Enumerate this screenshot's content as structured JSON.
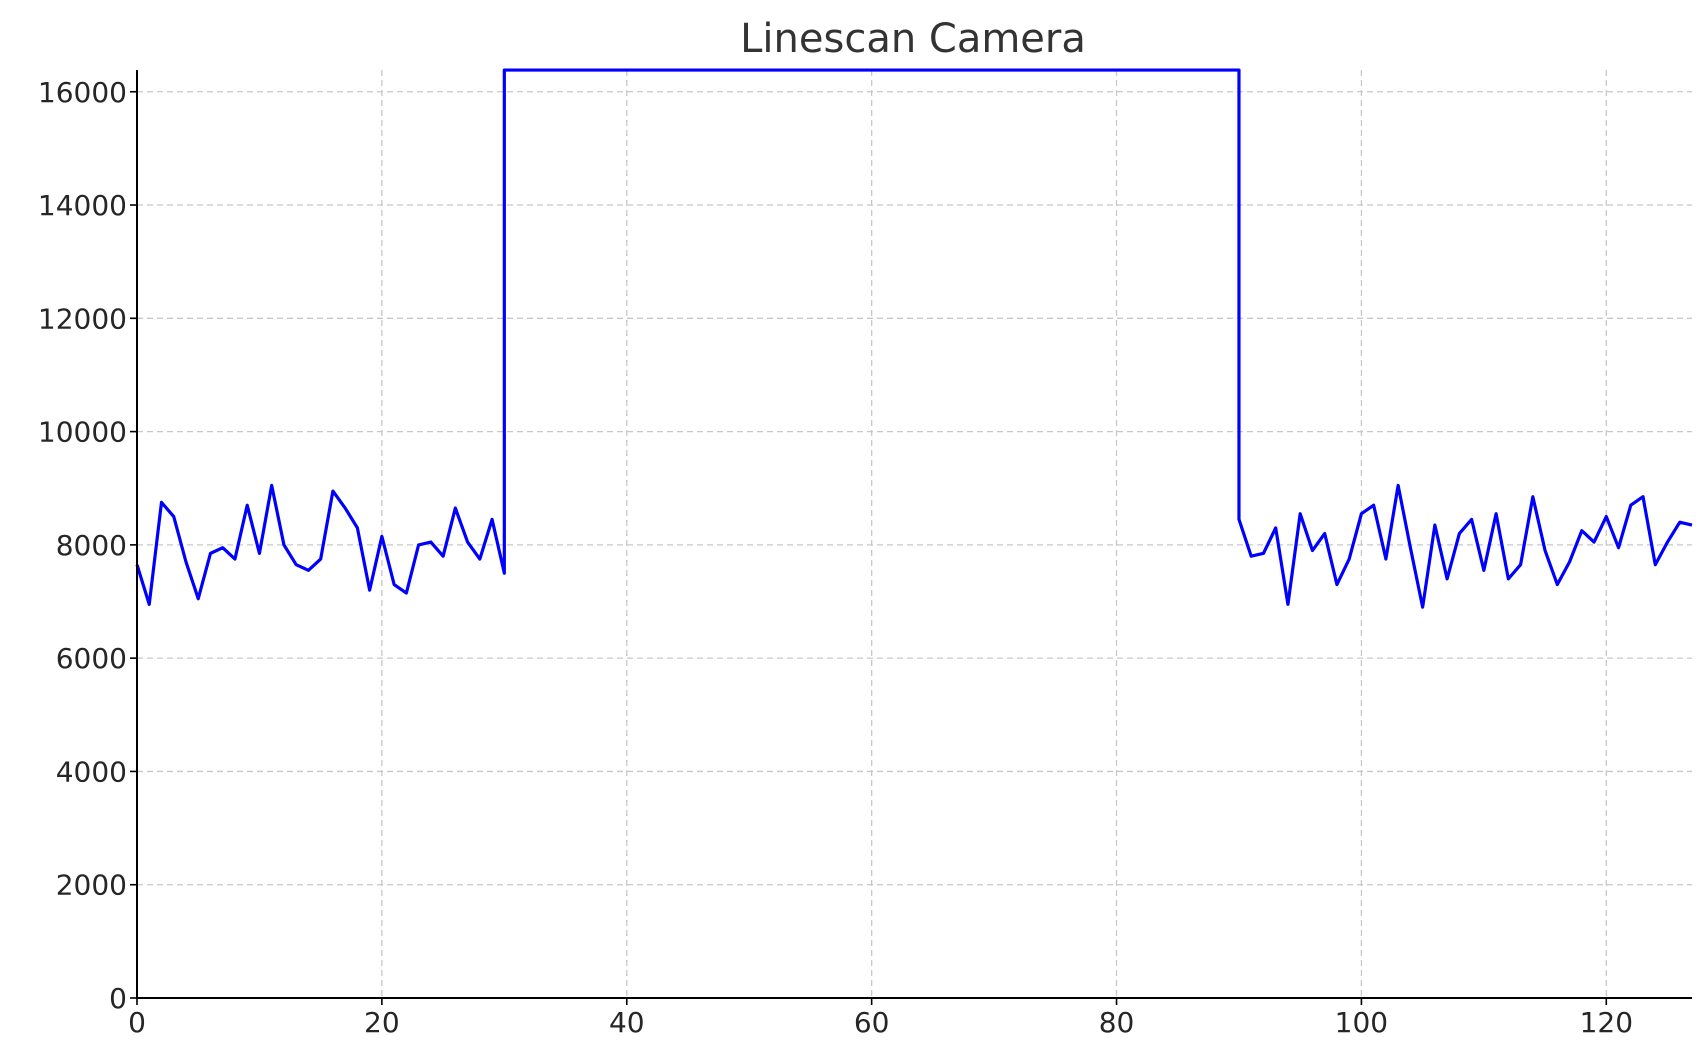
{
  "chart_data": {
    "type": "line",
    "title": "Linescan Camera",
    "xlabel": "",
    "ylabel": "",
    "xlim": [
      0,
      127
    ],
    "ylim": [
      0,
      16384
    ],
    "x_ticks": [
      0,
      20,
      40,
      60,
      80,
      100,
      120
    ],
    "y_ticks": [
      0,
      2000,
      4000,
      6000,
      8000,
      10000,
      12000,
      14000,
      16000
    ],
    "grid": true,
    "legend": "none",
    "series": [
      {
        "color": "#0000ff",
        "x": [
          0,
          1,
          2,
          3,
          4,
          5,
          6,
          7,
          8,
          9,
          10,
          11,
          12,
          13,
          14,
          15,
          16,
          17,
          18,
          19,
          20,
          21,
          22,
          23,
          24,
          25,
          26,
          27,
          28,
          29,
          30,
          30,
          31,
          32,
          33,
          34,
          35,
          36,
          37,
          38,
          39,
          40,
          41,
          42,
          43,
          44,
          45,
          46,
          47,
          48,
          49,
          50,
          51,
          52,
          53,
          54,
          55,
          56,
          57,
          58,
          59,
          60,
          61,
          62,
          63,
          64,
          65,
          66,
          67,
          68,
          69,
          70,
          71,
          72,
          73,
          74,
          75,
          76,
          77,
          78,
          79,
          80,
          81,
          82,
          83,
          84,
          85,
          86,
          87,
          88,
          89,
          90,
          90,
          91,
          92,
          93,
          94,
          95,
          96,
          97,
          98,
          99,
          100,
          101,
          102,
          103,
          104,
          105,
          106,
          107,
          108,
          109,
          110,
          111,
          112,
          113,
          114,
          115,
          116,
          117,
          118,
          119,
          120,
          121,
          122,
          123,
          124,
          125,
          126,
          127
        ],
        "y": [
          7650,
          6950,
          8750,
          8500,
          7700,
          7050,
          7850,
          7950,
          7750,
          8700,
          7850,
          9050,
          8000,
          7650,
          7550,
          7750,
          8950,
          8650,
          8300,
          7200,
          8150,
          7300,
          7150,
          8000,
          8050,
          7800,
          8650,
          8050,
          7750,
          8450,
          7500,
          16383,
          16383,
          16383,
          16383,
          16383,
          16383,
          16383,
          16383,
          16383,
          16383,
          16383,
          16383,
          16383,
          16383,
          16383,
          16383,
          16383,
          16383,
          16383,
          16383,
          16383,
          16383,
          16383,
          16383,
          16383,
          16383,
          16383,
          16383,
          16383,
          16383,
          16383,
          16383,
          16383,
          16383,
          16383,
          16383,
          16383,
          16383,
          16383,
          16383,
          16383,
          16383,
          16383,
          16383,
          16383,
          16383,
          16383,
          16383,
          16383,
          16383,
          16383,
          16383,
          16383,
          16383,
          16383,
          16383,
          16383,
          16383,
          16383,
          16383,
          16383,
          8450,
          7800,
          7850,
          8300,
          6950,
          8550,
          7900,
          8200,
          7300,
          7750,
          8550,
          8700,
          7750,
          9050,
          7950,
          6900,
          8350,
          7400,
          8200,
          8450,
          7550,
          8550,
          7400,
          7650,
          8850,
          7900,
          7300,
          7700,
          8250,
          8050,
          8500,
          7950,
          8700,
          8850,
          7650,
          8050,
          8400,
          8350
        ]
      }
    ]
  }
}
